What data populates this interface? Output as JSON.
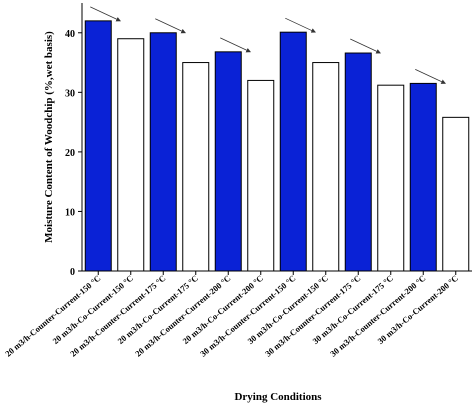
{
  "chart_data": {
    "type": "bar",
    "categories": [
      "20 m3/h-Counter-Current-150 °C",
      "20 m3/h-Co-Current-150 °C",
      "20 m3/h-Counter-Current-175 °C",
      "20 m3/h-Co-Current-175 °C",
      "20 m3/h-Counter-Current-200 °C",
      "20 m3/h-Co-Current-200 °C",
      "30 m3/h-Counter-Current-150 °C",
      "30 m3/h-Co-Current-150 °C",
      "30 m3/h-Counter-Current-175 °C",
      "30 m3/h-Co-Current-175 °C",
      "30 m3/h-Counter-Current-200 °C",
      "30 m3/h-Co-Current-200 °C"
    ],
    "values": [
      42,
      39,
      40,
      35,
      36.8,
      32,
      40.1,
      35,
      36.6,
      31.2,
      31.5,
      25.8
    ],
    "colors": [
      "#0a22d6",
      "#ffffff",
      "#0a22d6",
      "#ffffff",
      "#0a22d6",
      "#ffffff",
      "#0a22d6",
      "#ffffff",
      "#0a22d6",
      "#ffffff",
      "#0a22d6",
      "#ffffff"
    ],
    "xlabel": "Drying Conditions",
    "ylabel": "Moisture Content of Woodchip (%,wet basis)",
    "ylim": [
      0,
      45
    ],
    "yticks": [
      0,
      10,
      20,
      30,
      40
    ]
  }
}
